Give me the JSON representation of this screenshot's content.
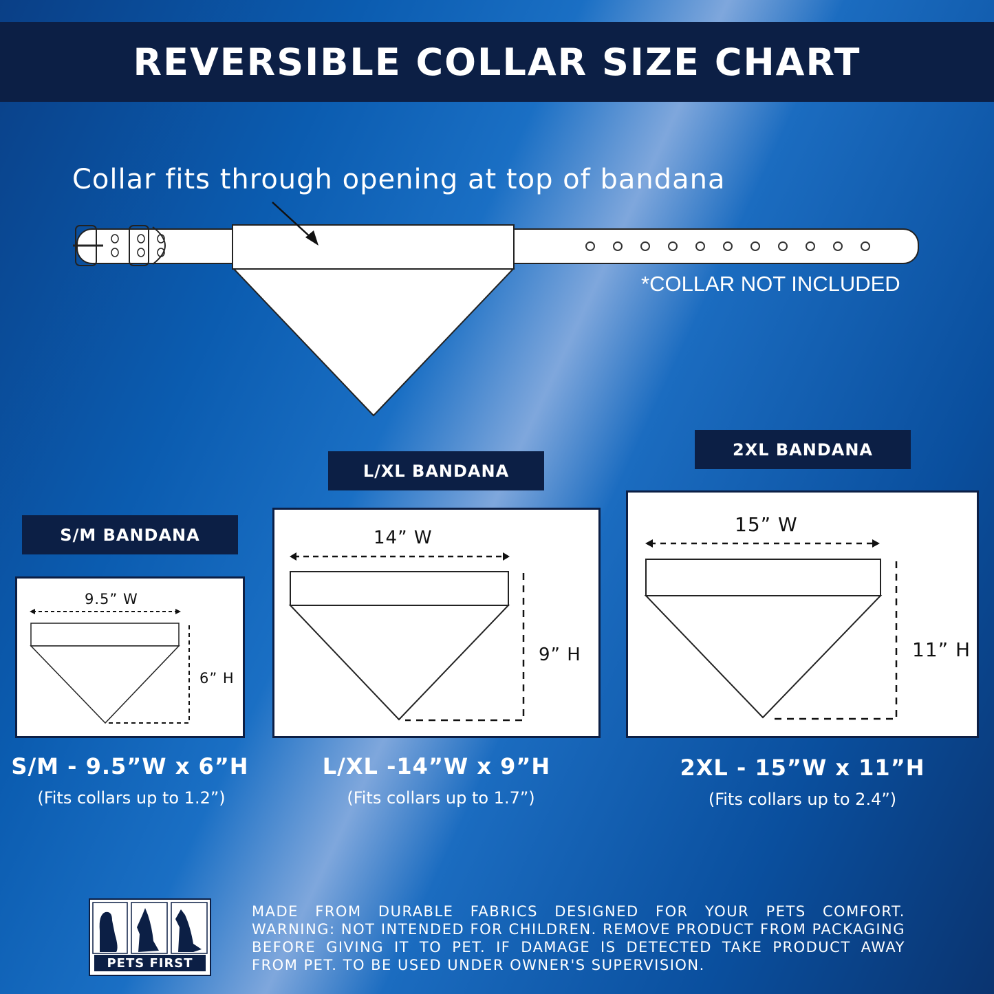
{
  "title": "REVERSIBLE COLLAR SIZE CHART",
  "callout": "Collar fits through opening at top of bandana",
  "collar_note": "*COLLAR NOT INCLUDED",
  "sizes": [
    {
      "label": "S/M BANDANA",
      "width": "9.5” W",
      "height": "6” H",
      "caption": "S/M - 9.5”W x 6”H",
      "fit": "(Fits collars up to 1.2”)"
    },
    {
      "label": "L/XL BANDANA",
      "width": "14” W",
      "height": "9” H",
      "caption": "L/XL -14”W x 9”H",
      "fit": "(Fits collars up to 1.7”)"
    },
    {
      "label": "2XL BANDANA",
      "width": "15” W",
      "height": "11” H",
      "caption": "2XL - 15”W x 11”H",
      "fit": "(Fits collars up to 2.4”)"
    }
  ],
  "warning": "MADE FROM DURABLE FABRICS DESIGNED FOR YOUR PETS COMFORT. WARNING: NOT INTENDED FOR CHILDREN. REMOVE PRODUCT FROM PACKAGING BEFORE GIVING IT TO PET. IF DAMAGE IS DETECTED TAKE PRODUCT AWAY FROM PET. TO BE USED UNDER OWNER'S SUPERVISION.",
  "brand": "PETS FIRST",
  "colors": {
    "navy": "#0c1f45",
    "blue": "#0b5cb0",
    "white": "#ffffff"
  }
}
